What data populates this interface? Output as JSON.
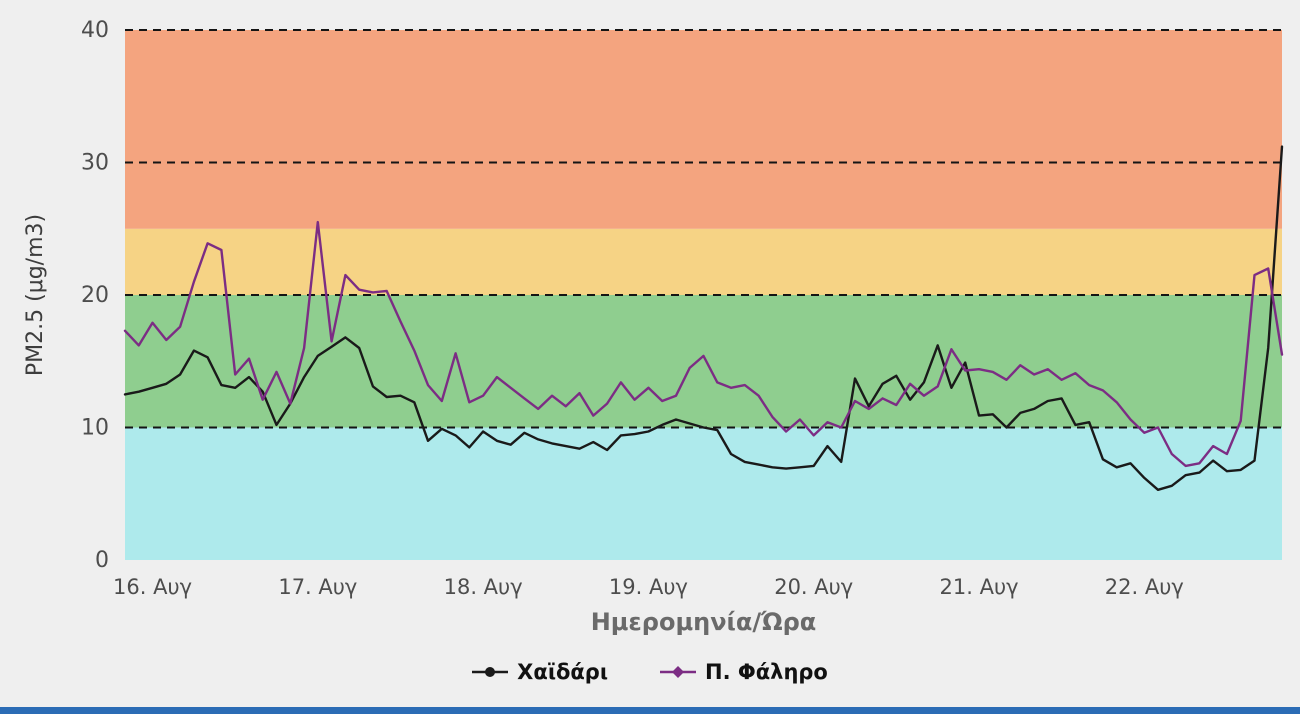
{
  "page": {
    "background": "#efefef",
    "footer_strip_color": "#2b6cb5"
  },
  "chart_data": {
    "type": "line",
    "title": "",
    "xlabel": "Ημερομηνία/Ώρα",
    "ylabel": "PM2.5 (μg/m3)",
    "ylim": [
      0,
      40
    ],
    "y_ticks": [
      0,
      10,
      20,
      30,
      40
    ],
    "grid_values": [
      10,
      20,
      30,
      40
    ],
    "grid_style": "dashed",
    "legend_position": "bottom",
    "x_tick_labels": [
      "16. Αυγ",
      "17. Αυγ",
      "18. Αυγ",
      "19. Αυγ",
      "20. Αυγ",
      "21. Αυγ",
      "22. Αυγ"
    ],
    "x_tick_positions": [
      0,
      1,
      2,
      3,
      4,
      5,
      6
    ],
    "x_start": -0.1667,
    "x_step": 0.08333,
    "x_unit_note": "x in days, 0 = 16. Αυγ, sampled every 2 hours (values estimated from plot)",
    "bands": [
      {
        "name": "zone-0-10",
        "from": 0,
        "to": 10,
        "color": "#aeeaec"
      },
      {
        "name": "zone-10-20",
        "from": 10,
        "to": 20,
        "color": "#8fce8f"
      },
      {
        "name": "zone-20-25",
        "from": 20,
        "to": 25,
        "color": "#f6d385"
      },
      {
        "name": "zone-25-40",
        "from": 25,
        "to": 40,
        "color": "#f4a47f"
      }
    ],
    "series": [
      {
        "name": "Χαϊδάρι",
        "color": "#1a1a1a",
        "marker": "circle",
        "values": [
          12.5,
          12.7,
          13.0,
          13.3,
          14.0,
          15.8,
          15.3,
          13.2,
          13.0,
          13.8,
          12.7,
          10.2,
          11.8,
          13.8,
          15.4,
          16.1,
          16.8,
          16.0,
          13.1,
          12.3,
          12.4,
          11.9,
          9.0,
          9.9,
          9.4,
          8.5,
          9.7,
          9.0,
          8.7,
          9.6,
          9.1,
          8.8,
          8.6,
          8.4,
          8.9,
          8.3,
          9.4,
          9.5,
          9.7,
          10.2,
          10.6,
          10.3,
          10.0,
          9.8,
          8.0,
          7.4,
          7.2,
          7.0,
          6.9,
          7.0,
          7.1,
          8.6,
          7.4,
          13.7,
          11.6,
          13.3,
          13.9,
          12.1,
          13.4,
          16.2,
          13.0,
          14.9,
          10.9,
          11.0,
          10.0,
          11.1,
          11.4,
          12.0,
          12.2,
          10.2,
          10.4,
          7.6,
          7.0,
          7.3,
          6.2,
          5.3,
          5.6,
          6.4,
          6.6,
          7.5,
          6.7,
          6.8,
          7.5,
          16.0,
          31.2
        ]
      },
      {
        "name": "Π. Φάληρο",
        "color": "#7c2d84",
        "marker": "diamond",
        "values": [
          17.3,
          16.2,
          17.9,
          16.6,
          17.6,
          21.0,
          23.9,
          23.4,
          14.0,
          15.2,
          12.1,
          14.2,
          11.8,
          16.0,
          25.5,
          16.5,
          21.5,
          20.4,
          20.2,
          20.3,
          18.0,
          15.8,
          13.2,
          12.0,
          15.6,
          11.9,
          12.4,
          13.8,
          13.0,
          12.2,
          11.4,
          12.4,
          11.6,
          12.6,
          10.9,
          11.8,
          13.4,
          12.1,
          13.0,
          12.0,
          12.4,
          14.5,
          15.4,
          13.4,
          13.0,
          13.2,
          12.4,
          10.8,
          9.7,
          10.6,
          9.4,
          10.4,
          10.0,
          12.0,
          11.4,
          12.2,
          11.7,
          13.3,
          12.4,
          13.1,
          15.9,
          14.3,
          14.4,
          14.2,
          13.6,
          14.7,
          14.0,
          14.4,
          13.6,
          14.1,
          13.2,
          12.8,
          11.9,
          10.6,
          9.6,
          10.0,
          8.0,
          7.1,
          7.3,
          8.6,
          8.0,
          10.5,
          21.5,
          22.0,
          15.5
        ]
      }
    ]
  }
}
